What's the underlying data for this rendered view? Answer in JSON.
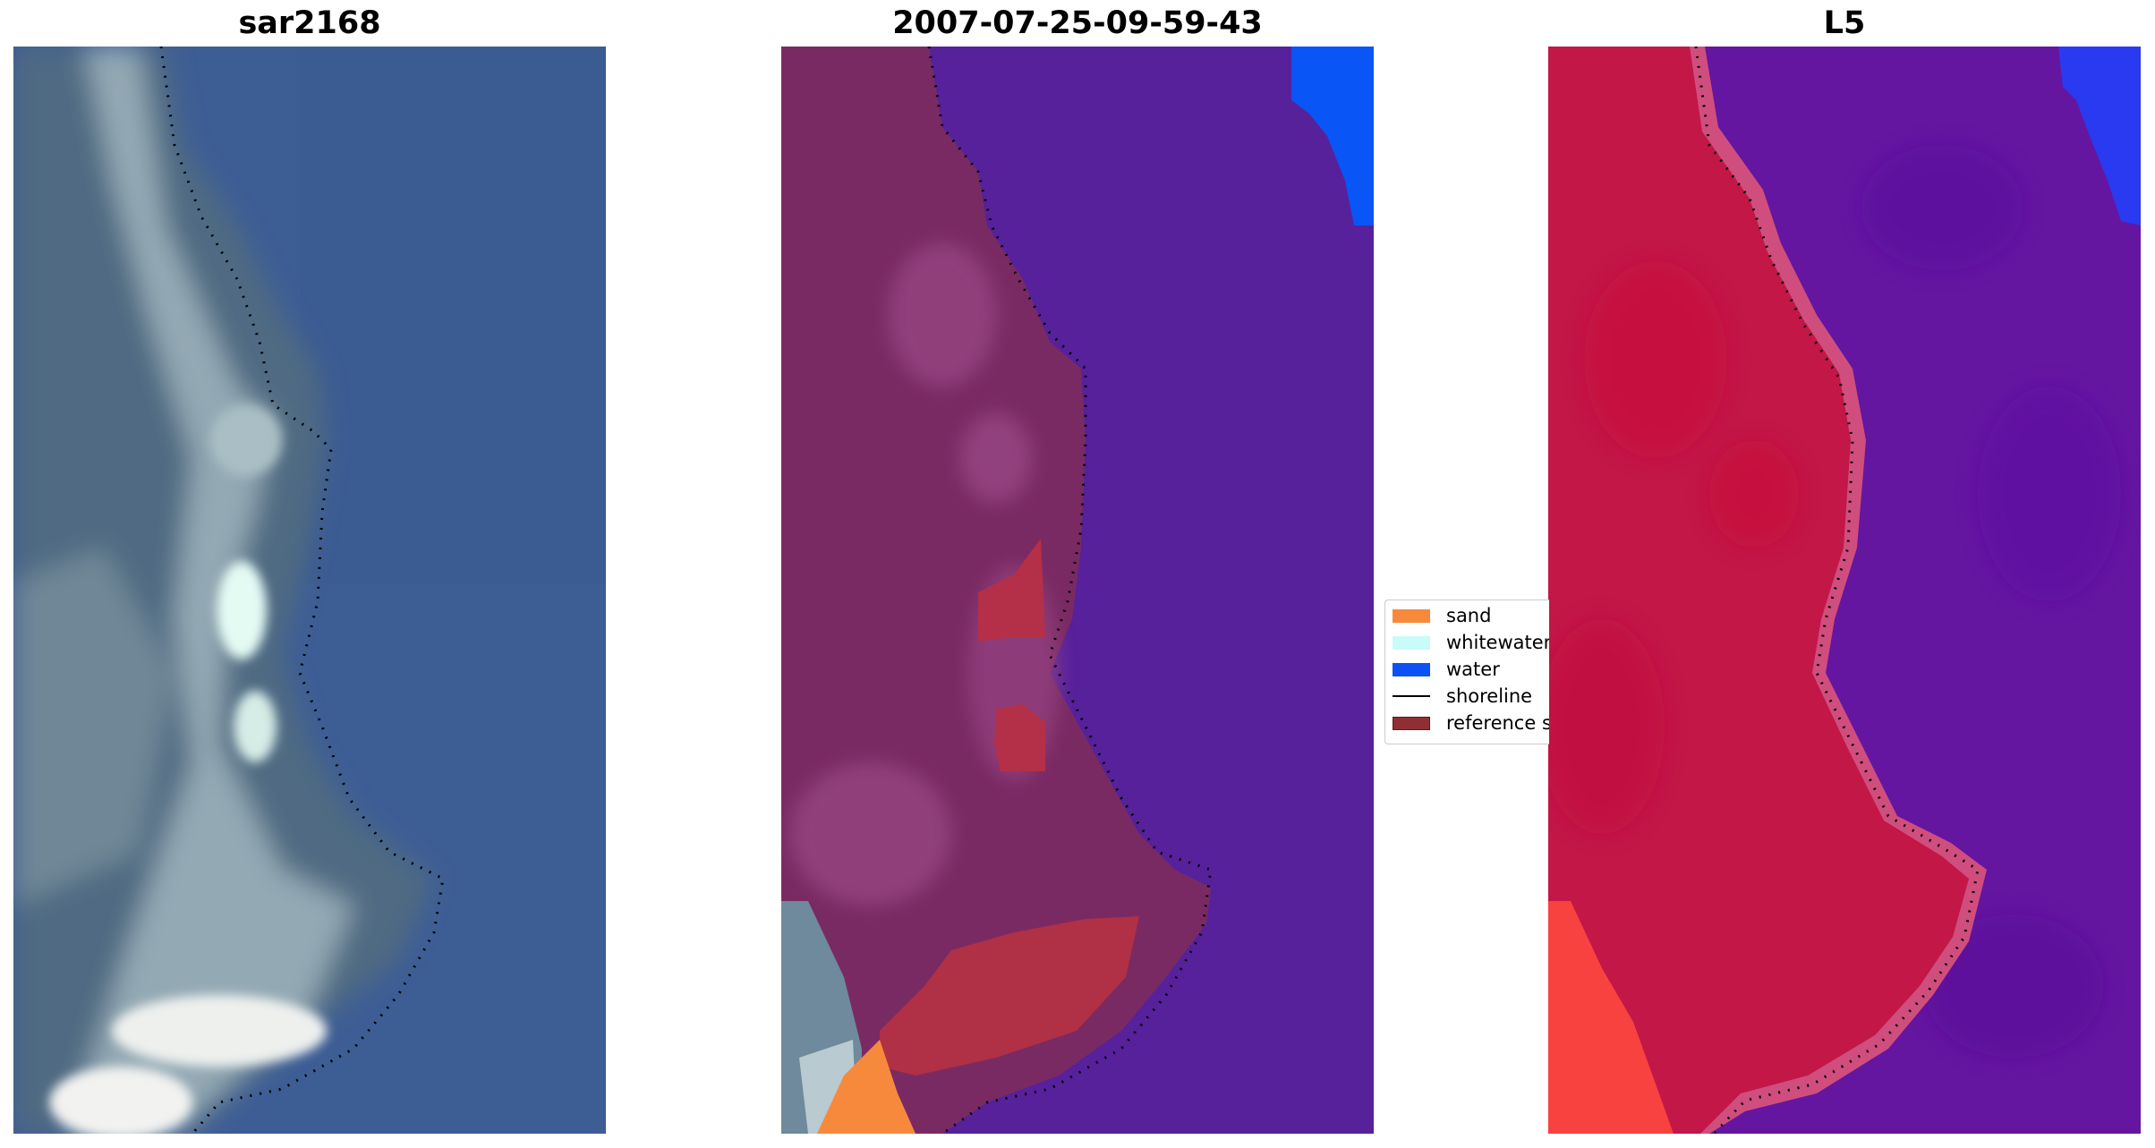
{
  "panels": [
    {
      "title": "sar2168"
    },
    {
      "title": "2007-07-25-09-59-43"
    },
    {
      "title": "L5"
    }
  ],
  "legend": {
    "items": [
      {
        "label": "sand",
        "kind": "patch",
        "color": "#f7893d"
      },
      {
        "label": "whitewater",
        "kind": "patch",
        "color": "#c8fbfa"
      },
      {
        "label": "water",
        "kind": "patch",
        "color": "#0a52f5"
      },
      {
        "label": "shoreline",
        "kind": "line",
        "color": "#000000"
      },
      {
        "label": "reference shoreline buffer",
        "kind": "patch",
        "color": "#8f2f35"
      }
    ]
  },
  "colors": {
    "rgb_water": "#3c5c93",
    "rgb_land": "#4f6d83",
    "rgb_surf": "#d8e6ea",
    "class_land": "#7a2a63",
    "class_water": "#55209a",
    "class_buffer": "#b03048",
    "l5_land": "#c21747",
    "l5_water": "#6414a0",
    "l5_edge": "#d24f7e"
  }
}
